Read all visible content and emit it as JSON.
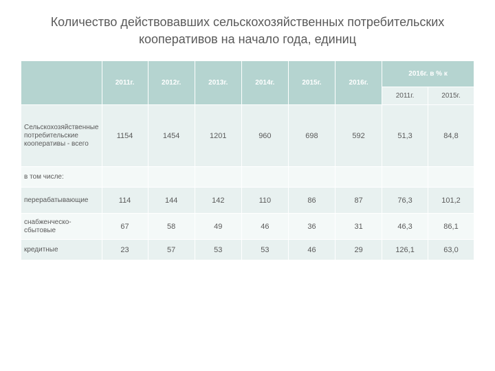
{
  "title": "Количество действовавших сельскохозяйственных потребительских кооперативов на начало  года, единиц",
  "table": {
    "type": "table",
    "header_colors": {
      "primary_bg": "#b5d4d0",
      "primary_fg": "#ffffff",
      "secondary_bg": "#e8f1f0",
      "secondary_fg": "#595959"
    },
    "row_colors": {
      "odd": "#e8f1f0",
      "even": "#f4f9f8"
    },
    "text_color": "#595959",
    "background_color": "#ffffff",
    "font_size_title": 18,
    "font_size_header": 10,
    "font_size_cell": 11,
    "columns": {
      "years": [
        "2011г.",
        "2012г.",
        "2013г.",
        "2014г.",
        "2015г.",
        "2016г."
      ],
      "pct_group": "2016г. в % к",
      "pct_sub": [
        "2011г.",
        "2015г."
      ]
    },
    "rows": [
      {
        "label": "Сельскохозяйственные потребительские кооперативы - всего",
        "values": [
          "1154",
          "1454",
          "1201",
          "960",
          "698",
          "592",
          "51,3",
          "84,8"
        ]
      },
      {
        "label": "в том числе:",
        "values": [
          "",
          "",
          "",
          "",
          "",
          "",
          "",
          ""
        ]
      },
      {
        "label": "перерабатывающие",
        "values": [
          "114",
          "144",
          "142",
          "110",
          "86",
          "87",
          "76,3",
          "101,2"
        ]
      },
      {
        "label": "снабженческо-сбытовые",
        "values": [
          "67",
          "58",
          "49",
          "46",
          "36",
          "31",
          "46,3",
          "86,1"
        ]
      },
      {
        "label": "кредитные",
        "values": [
          "23",
          "57",
          "53",
          "53",
          "46",
          "29",
          "126,1",
          "63,0"
        ]
      }
    ]
  }
}
